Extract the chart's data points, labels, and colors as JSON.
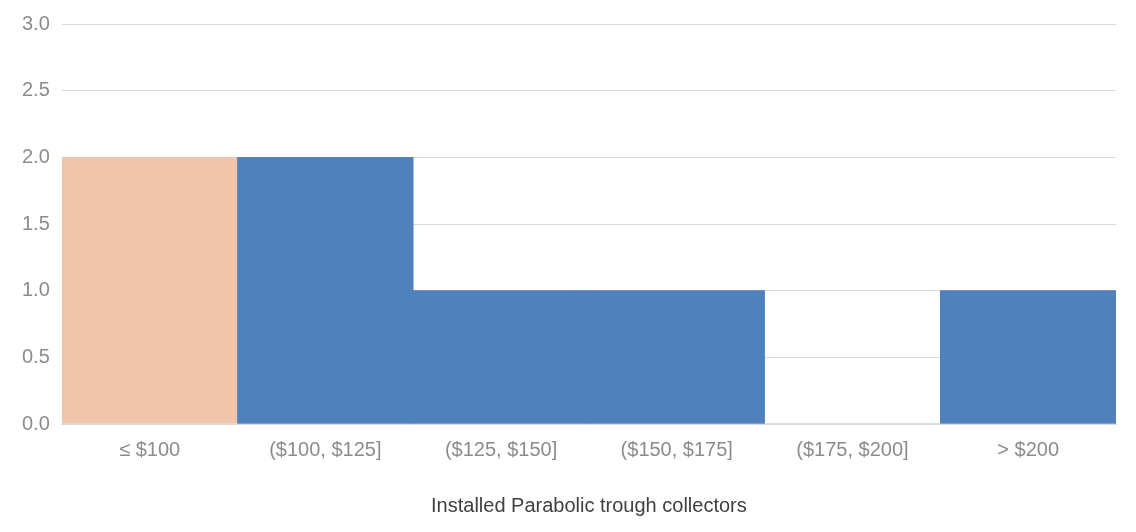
{
  "chart_data": {
    "type": "bar",
    "xlabel": "Installed Parabolic trough collectors",
    "categories": [
      "≤ $100",
      "($100, $125]",
      "($125, $150]",
      "($150, $175]",
      "($175, $200]",
      "> $200"
    ],
    "values": [
      2,
      2,
      1,
      1,
      0,
      1
    ],
    "colors": [
      "#f0c5ac",
      "#4f81bd",
      "#4f81bd",
      "#4f81bd",
      "#4f81bd",
      "#4f81bd"
    ],
    "ylim": [
      0,
      3
    ],
    "yticks": [
      {
        "value": 0,
        "label": "0.0"
      },
      {
        "value": 0.5,
        "label": "0.5"
      },
      {
        "value": 1,
        "label": "1.0"
      },
      {
        "value": 1.5,
        "label": "1.5"
      },
      {
        "value": 2,
        "label": "2.0"
      },
      {
        "value": 2.5,
        "label": "2.5"
      },
      {
        "value": 3,
        "label": "3.0"
      }
    ],
    "grid": "y",
    "legend": false
  }
}
